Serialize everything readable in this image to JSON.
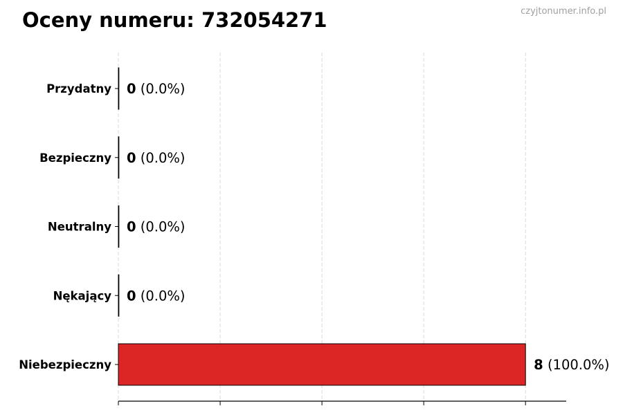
{
  "header": {
    "title": "Oceny numeru: 732054271",
    "watermark": "czyjtonumer.info.pl"
  },
  "chart_data": {
    "type": "bar",
    "orientation": "horizontal",
    "title": "Oceny numeru: 732054271",
    "categories": [
      "Przydatny",
      "Bezpieczny",
      "Neutralny",
      "Nękający",
      "Niebezpieczny"
    ],
    "values": [
      0,
      0,
      0,
      0,
      8
    ],
    "percentages": [
      "0.0%",
      "0.0%",
      "0.0%",
      "0.0%",
      "100.0%"
    ],
    "xlim": [
      0,
      8.8
    ],
    "xticks": [
      0,
      2,
      4,
      6,
      8
    ],
    "xtick_labels_shown": false,
    "grid": "vertical dashed",
    "bar_color": "#dc2626",
    "bar_edge_color": "#000000"
  }
}
